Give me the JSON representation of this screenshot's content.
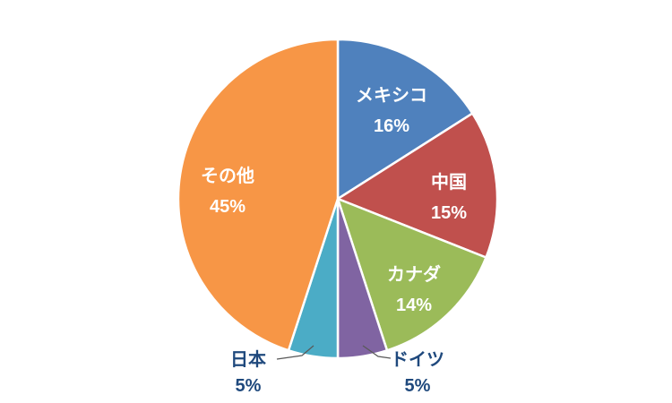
{
  "chart_data": {
    "type": "pie",
    "title": "",
    "legend": "none",
    "background_color": "#FFFFFF",
    "direction": "clockwise",
    "start_angle_deg": 0,
    "categories": [
      "メキシコ",
      "中国",
      "カナダ",
      "ドイツ",
      "日本",
      "その他"
    ],
    "values": [
      16,
      15,
      14,
      5,
      5,
      45
    ],
    "slices": [
      {
        "label": "メキシコ",
        "value": 16,
        "percent_label": "16%",
        "color": "#4F81BD",
        "label_placement": "inside"
      },
      {
        "label": "中国",
        "value": 15,
        "percent_label": "15%",
        "color": "#C0504D",
        "label_placement": "inside"
      },
      {
        "label": "カナダ",
        "value": 14,
        "percent_label": "14%",
        "color": "#9BBB59",
        "label_placement": "inside"
      },
      {
        "label": "ドイツ",
        "value": 5,
        "percent_label": "5%",
        "color": "#8064A2",
        "label_placement": "outside"
      },
      {
        "label": "日本",
        "value": 5,
        "percent_label": "5%",
        "color": "#4BACC6",
        "label_placement": "outside"
      },
      {
        "label": "その他",
        "value": 45,
        "percent_label": "45%",
        "color": "#F79646",
        "label_placement": "inside"
      }
    ],
    "inside_label_color": "#FFFFFF",
    "outside_label_color": "#1F497D",
    "leader_line_color": "#595959",
    "slice_border_color": "#FFFFFF"
  }
}
